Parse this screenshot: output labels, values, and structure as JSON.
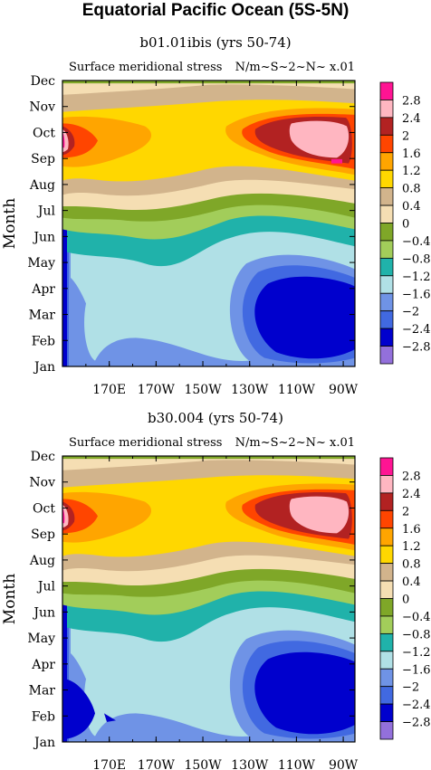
{
  "title": "Equatorial Pacific Ocean (5S-5N)",
  "colors": {
    "levels": [
      "#9370db",
      "#0000cd",
      "#4169e1",
      "#6f93e6",
      "#b0e0e6",
      "#20b2aa",
      "#a2cd5a",
      "#7fa728",
      "#f5deb3",
      "#d2b48c",
      "#ffd700",
      "#ffa500",
      "#ff4500",
      "#b22222",
      "#ffb6c1",
      "#ff1493"
    ]
  },
  "chart_data": [
    {
      "type": "heatmap",
      "subtitle": "b01.01ibis (yrs 50-74)",
      "left_label": "Surface meridional stress",
      "right_label": "N/m~S~2~N~ x.01",
      "ylabel": "Month",
      "xlabel": "",
      "x_ticks": [
        "170E",
        "170W",
        "150W",
        "130W",
        "110W",
        "90W"
      ],
      "y_ticks": [
        "Jan",
        "Feb",
        "Mar",
        "Apr",
        "May",
        "Jun",
        "Jul",
        "Aug",
        "Sep",
        "Oct",
        "Nov",
        "Dec"
      ],
      "xlim": [
        "150E",
        "85W"
      ],
      "ylim": [
        "Jan",
        "Dec"
      ],
      "colorbar_labels": [
        "2.8",
        "2.4",
        "2",
        "1.6",
        "1.2",
        "0.8",
        "0.4",
        "0",
        "−0.4",
        "−0.8",
        "−1.2",
        "−1.6",
        "−2",
        "−2.4",
        "−2.8"
      ]
    },
    {
      "type": "heatmap",
      "subtitle": "b30.004 (yrs 50-74)",
      "left_label": "Surface meridional stress",
      "right_label": "N/m~S~2~N~ x.01",
      "ylabel": "Month",
      "xlabel": "",
      "x_ticks": [
        "170E",
        "170W",
        "150W",
        "130W",
        "110W",
        "90W"
      ],
      "y_ticks": [
        "Jan",
        "Feb",
        "Mar",
        "Apr",
        "May",
        "Jun",
        "Jul",
        "Aug",
        "Sep",
        "Oct",
        "Nov",
        "Dec"
      ],
      "xlim": [
        "150E",
        "85W"
      ],
      "ylim": [
        "Jan",
        "Dec"
      ],
      "colorbar_labels": [
        "2.8",
        "2.4",
        "2",
        "1.6",
        "1.2",
        "0.8",
        "0.4",
        "0",
        "−0.4",
        "−0.8",
        "−1.2",
        "−1.6",
        "−2",
        "−2.4",
        "−2.8"
      ]
    }
  ]
}
